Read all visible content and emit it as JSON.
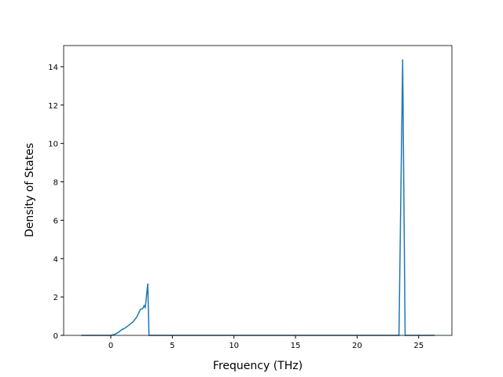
{
  "chart_data": {
    "type": "line",
    "x_label": "Frequency (THz)",
    "y_label": "Density of States",
    "x": [
      -2.4,
      0,
      0.3,
      0.6,
      0.9,
      1.2,
      1.5,
      1.8,
      2.1,
      2.4,
      2.6,
      2.7,
      2.8,
      3.0,
      3.1,
      23.4,
      23.7,
      23.9,
      26.3
    ],
    "series": [
      {
        "color": "#1f77b4",
        "values": [
          0,
          0,
          0.05,
          0.15,
          0.3,
          0.4,
          0.55,
          0.7,
          0.95,
          1.35,
          1.4,
          1.55,
          1.45,
          2.7,
          0,
          0,
          14.38,
          0,
          0
        ]
      }
    ],
    "xlim": [
      -3.83,
      27.7
    ],
    "xticks": [
      0,
      5,
      10,
      15,
      20,
      25
    ],
    "ylim": [
      0,
      15.1
    ],
    "yticks": [
      0,
      2,
      4,
      6,
      8,
      10,
      12,
      14
    ]
  }
}
